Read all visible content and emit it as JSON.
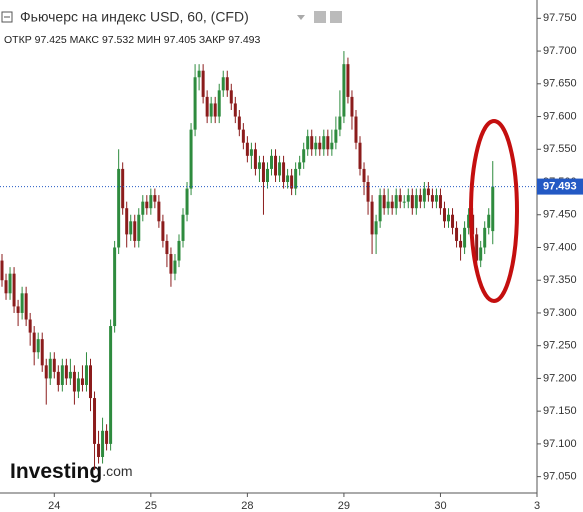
{
  "chart_data": {
    "type": "candlestick",
    "title": "Фьючерс на индекс USD, 60, (CFD)",
    "ohlc_labels": {
      "open": "ОТКР",
      "high": "МАКС",
      "low": "МИН",
      "close": "ЗАКР"
    },
    "watermark": {
      "brand": "Investing",
      "suffix": ".com"
    },
    "up_color": "#2e8b3e",
    "down_color": "#8b1c1c",
    "last_price_color": "#2359c4",
    "open": [
      97.38,
      97.35,
      97.33,
      97.36,
      97.31,
      97.3,
      97.33,
      97.29,
      97.27,
      97.24,
      97.26,
      97.22,
      97.2,
      97.23,
      97.21,
      97.19,
      97.22,
      97.2,
      97.21,
      97.18,
      97.2,
      97.19,
      97.22,
      97.17,
      97.1,
      97.08,
      97.12,
      97.1,
      97.28,
      97.4,
      97.52,
      97.46,
      97.42,
      97.44,
      97.41,
      97.45,
      97.47,
      97.46,
      97.48,
      97.47,
      97.44,
      97.41,
      97.39,
      97.36,
      97.38,
      97.41,
      97.45,
      97.49,
      97.58,
      97.66,
      97.67,
      97.63,
      97.6,
      97.62,
      97.6,
      97.64,
      97.66,
      97.64,
      97.62,
      97.6,
      97.58,
      97.56,
      97.54,
      97.55,
      97.52,
      97.53,
      97.5,
      97.52,
      97.54,
      97.51,
      97.53,
      97.5,
      97.51,
      97.49,
      97.52,
      97.53,
      97.55,
      97.57,
      97.55,
      97.56,
      97.55,
      97.57,
      97.55,
      97.56,
      97.58,
      97.6,
      97.68,
      97.63,
      97.6,
      97.56,
      97.52,
      97.5,
      97.47,
      97.42,
      97.44,
      97.48,
      97.46,
      97.47,
      97.46,
      97.48,
      97.47,
      97.47,
      97.48,
      97.46,
      97.48,
      97.47,
      97.49,
      97.48,
      97.47,
      97.48,
      97.46,
      97.44,
      97.45,
      97.43,
      97.41,
      97.4,
      97.43,
      97.45,
      97.42,
      97.38,
      97.4,
      97.43,
      97.425
    ],
    "high": [
      97.39,
      97.36,
      97.37,
      97.37,
      97.32,
      97.34,
      97.34,
      97.3,
      97.28,
      97.27,
      97.27,
      97.23,
      97.24,
      97.24,
      97.22,
      97.23,
      97.23,
      97.23,
      97.22,
      97.21,
      97.22,
      97.24,
      97.23,
      97.18,
      97.12,
      97.14,
      97.13,
      97.29,
      97.41,
      97.55,
      97.53,
      97.47,
      97.45,
      97.45,
      97.46,
      97.48,
      97.48,
      97.49,
      97.49,
      97.48,
      97.45,
      97.42,
      97.4,
      97.39,
      97.42,
      97.46,
      97.5,
      97.59,
      97.68,
      97.68,
      97.68,
      97.64,
      97.63,
      97.63,
      97.65,
      97.67,
      97.67,
      97.65,
      97.63,
      97.61,
      97.59,
      97.57,
      97.56,
      97.56,
      97.54,
      97.54,
      97.53,
      97.55,
      97.55,
      97.54,
      97.54,
      97.52,
      97.52,
      97.53,
      97.54,
      97.56,
      97.58,
      97.58,
      97.57,
      97.57,
      97.58,
      97.58,
      97.58,
      97.6,
      97.64,
      97.7,
      97.69,
      97.64,
      97.61,
      97.57,
      97.53,
      97.51,
      97.48,
      97.45,
      97.49,
      97.49,
      97.49,
      97.48,
      97.49,
      97.49,
      97.48,
      97.49,
      97.49,
      97.49,
      97.49,
      97.5,
      97.5,
      97.49,
      97.49,
      97.49,
      97.47,
      97.46,
      97.46,
      97.44,
      97.42,
      97.44,
      97.46,
      97.46,
      97.43,
      97.41,
      97.44,
      97.46,
      97.532
    ],
    "low": [
      97.34,
      97.32,
      97.32,
      97.3,
      97.28,
      97.29,
      97.28,
      97.25,
      97.22,
      97.23,
      97.21,
      97.16,
      97.19,
      97.2,
      97.18,
      97.18,
      97.19,
      97.19,
      97.16,
      97.17,
      97.18,
      97.18,
      97.15,
      97.06,
      97.07,
      97.07,
      97.09,
      97.09,
      97.27,
      97.39,
      97.45,
      97.4,
      97.41,
      97.4,
      97.4,
      97.44,
      97.45,
      97.45,
      97.46,
      97.43,
      97.4,
      97.37,
      97.34,
      97.35,
      97.37,
      97.4,
      97.44,
      97.48,
      97.57,
      97.64,
      97.62,
      97.59,
      97.59,
      97.59,
      97.59,
      97.63,
      97.63,
      97.61,
      97.59,
      97.57,
      97.55,
      97.53,
      97.52,
      97.51,
      97.5,
      97.45,
      97.49,
      97.51,
      97.5,
      97.5,
      97.49,
      97.49,
      97.48,
      97.48,
      97.51,
      97.52,
      97.54,
      97.54,
      97.54,
      97.54,
      97.54,
      97.54,
      97.54,
      97.55,
      97.57,
      97.59,
      97.62,
      97.58,
      97.55,
      97.51,
      97.48,
      97.45,
      97.39,
      97.39,
      97.43,
      97.45,
      97.45,
      97.45,
      97.45,
      97.46,
      97.46,
      97.46,
      97.45,
      97.45,
      97.46,
      97.46,
      97.47,
      97.46,
      97.46,
      97.45,
      97.43,
      97.43,
      97.42,
      97.4,
      97.38,
      97.39,
      97.42,
      97.4,
      97.37,
      97.37,
      97.39,
      97.42,
      97.405
    ],
    "close": [
      97.35,
      97.33,
      97.36,
      97.31,
      97.3,
      97.33,
      97.29,
      97.27,
      97.24,
      97.26,
      97.22,
      97.2,
      97.23,
      97.21,
      97.19,
      97.22,
      97.2,
      97.21,
      97.18,
      97.2,
      97.19,
      97.22,
      97.17,
      97.1,
      97.08,
      97.12,
      97.1,
      97.28,
      97.4,
      97.52,
      97.46,
      97.42,
      97.44,
      97.41,
      97.45,
      97.47,
      97.46,
      97.48,
      97.47,
      97.44,
      97.41,
      97.39,
      97.36,
      97.38,
      97.41,
      97.45,
      97.49,
      97.58,
      97.66,
      97.67,
      97.63,
      97.6,
      97.62,
      97.6,
      97.64,
      97.66,
      97.64,
      97.62,
      97.6,
      97.58,
      97.56,
      97.54,
      97.55,
      97.52,
      97.53,
      97.5,
      97.52,
      97.54,
      97.51,
      97.53,
      97.5,
      97.51,
      97.49,
      97.52,
      97.53,
      97.55,
      97.57,
      97.55,
      97.56,
      97.55,
      97.57,
      97.55,
      97.56,
      97.58,
      97.6,
      97.68,
      97.63,
      97.6,
      97.56,
      97.52,
      97.5,
      97.47,
      97.42,
      97.44,
      97.48,
      97.46,
      97.47,
      97.46,
      97.48,
      97.47,
      97.47,
      97.48,
      97.46,
      97.48,
      97.47,
      97.49,
      97.48,
      97.47,
      97.48,
      97.46,
      97.44,
      97.45,
      97.43,
      97.41,
      97.4,
      97.43,
      97.45,
      97.42,
      97.38,
      97.4,
      97.43,
      97.45,
      97.493
    ],
    "xlim": [
      0,
      133
    ],
    "xticks": [
      {
        "value": 13,
        "label": "24"
      },
      {
        "value": 37,
        "label": "25"
      },
      {
        "value": 61,
        "label": "28"
      },
      {
        "value": 85,
        "label": "29"
      },
      {
        "value": 109,
        "label": "30"
      },
      {
        "value": 133,
        "label": "3"
      }
    ],
    "ylim": [
      97.025,
      97.778
    ],
    "yticks": [
      {
        "value": 97.05,
        "label": "97.050"
      },
      {
        "value": 97.1,
        "label": "97.100"
      },
      {
        "value": 97.15,
        "label": "97.150"
      },
      {
        "value": 97.2,
        "label": "97.200"
      },
      {
        "value": 97.25,
        "label": "97.250"
      },
      {
        "value": 97.3,
        "label": "97.300"
      },
      {
        "value": 97.35,
        "label": "97.350"
      },
      {
        "value": 97.4,
        "label": "97.400"
      },
      {
        "value": 97.45,
        "label": "97.450"
      },
      {
        "value": 97.5,
        "label": "97.500"
      },
      {
        "value": 97.55,
        "label": "97.550"
      },
      {
        "value": 97.6,
        "label": "97.600"
      },
      {
        "value": 97.65,
        "label": "97.650"
      },
      {
        "value": 97.7,
        "label": "97.700"
      },
      {
        "value": 97.75,
        "label": "97.750"
      }
    ],
    "grid": false
  }
}
